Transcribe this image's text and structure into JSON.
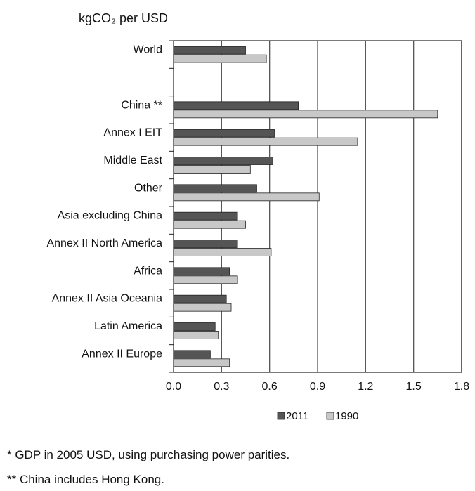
{
  "chart_data": {
    "type": "bar",
    "orientation": "horizontal",
    "unit_label": "kgCO₂ per USD",
    "categories": [
      "World",
      "",
      "China **",
      "Annex I EIT",
      "Middle East",
      "Other",
      "Asia excluding China",
      "Annex II North America",
      "Africa",
      "Annex II Asia Oceania",
      "Latin America",
      "Annex II Europe"
    ],
    "series": [
      {
        "name": "2011",
        "color": "#555555",
        "values": [
          0.45,
          null,
          0.78,
          0.63,
          0.62,
          0.52,
          0.4,
          0.4,
          0.35,
          0.33,
          0.26,
          0.23
        ]
      },
      {
        "name": "1990",
        "color": "#c8c8c8",
        "values": [
          0.58,
          null,
          1.65,
          1.15,
          0.48,
          0.91,
          0.45,
          0.61,
          0.4,
          0.36,
          0.28,
          0.35
        ]
      }
    ],
    "xlim": [
      0,
      1.8
    ],
    "xticks": [
      "0.0",
      "0.3",
      "0.6",
      "0.9",
      "1.2",
      "1.5",
      "1.8"
    ],
    "grid": true,
    "legend_placement": "bottom-right"
  },
  "footnotes": [
    "* GDP in 2005 USD, using purchasing power parities.",
    "** China includes Hong Kong."
  ]
}
